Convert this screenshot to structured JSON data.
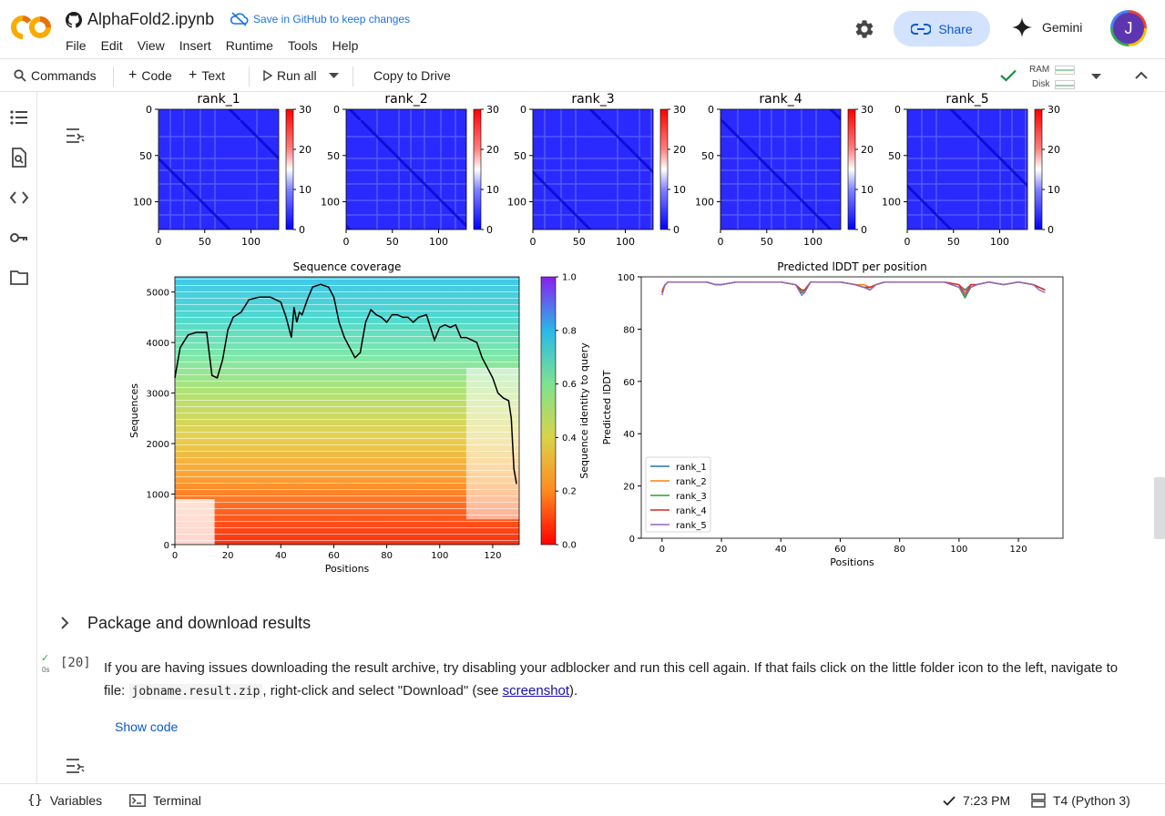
{
  "app": {
    "notebook_title": "AlphaFold2.ipynb",
    "save_notice": "Save in GitHub to keep changes",
    "share_label": "Share",
    "gemini_label": "Gemini",
    "avatar_letter": "J"
  },
  "menu": [
    "File",
    "Edit",
    "View",
    "Insert",
    "Runtime",
    "Tools",
    "Help"
  ],
  "toolbar": {
    "commands": "Commands",
    "code": "Code",
    "text": "Text",
    "run_all": "Run all",
    "copy_to_drive": "Copy to Drive",
    "ram": "RAM",
    "disk": "Disk"
  },
  "pae_plots": {
    "titles": [
      "rank_1",
      "rank_2",
      "rank_3",
      "rank_4",
      "rank_5"
    ],
    "y_ticks": [
      "0",
      "50",
      "100"
    ],
    "x_ticks": [
      "0",
      "50",
      "100"
    ],
    "colorbar_ticks": [
      "30",
      "20",
      "10",
      "0"
    ]
  },
  "coverage_plot": {
    "title": "Sequence coverage",
    "xlabel": "Positions",
    "ylabel": "Sequences",
    "colorbar_label": "Sequence identity to query",
    "x_ticks": [
      "0",
      "20",
      "40",
      "60",
      "80",
      "100",
      "120"
    ],
    "y_ticks": [
      "0",
      "1000",
      "2000",
      "3000",
      "4000",
      "5000"
    ],
    "cbar_ticks": [
      "0.0",
      "0.2",
      "0.4",
      "0.6",
      "0.8",
      "1.0"
    ]
  },
  "chart_data": [
    {
      "type": "area",
      "title": "Sequence coverage",
      "xlabel": "Positions",
      "ylabel": "Sequences",
      "xlim": [
        0,
        130
      ],
      "ylim": [
        0,
        5300
      ],
      "x": [
        0,
        2,
        5,
        8,
        12,
        14,
        16,
        18,
        20,
        22,
        25,
        28,
        32,
        36,
        40,
        42,
        44,
        45,
        46,
        47,
        48,
        50,
        52,
        55,
        58,
        60,
        62,
        64,
        66,
        68,
        70,
        72,
        74,
        76,
        78,
        80,
        82,
        84,
        86,
        88,
        90,
        92,
        95,
        98,
        100,
        102,
        104,
        106,
        108,
        110,
        112,
        114,
        116,
        118,
        120,
        122,
        124,
        126,
        127,
        128,
        129
      ],
      "coverage_line": [
        3300,
        3900,
        4150,
        4200,
        4200,
        3350,
        3300,
        3650,
        4250,
        4500,
        4600,
        4850,
        4900,
        4900,
        4800,
        4500,
        4100,
        4700,
        4400,
        4600,
        4550,
        4850,
        5100,
        5150,
        5100,
        4900,
        4400,
        4100,
        3900,
        3700,
        3800,
        4400,
        4650,
        4550,
        4500,
        4400,
        4550,
        4550,
        4500,
        4500,
        4400,
        4500,
        4550,
        4050,
        4300,
        4350,
        4300,
        4350,
        4100,
        4100,
        4050,
        4000,
        3700,
        3500,
        3300,
        3000,
        2900,
        2850,
        2500,
        1500,
        1200
      ],
      "colorbar": {
        "label": "Sequence identity to query",
        "range": [
          0.0,
          1.0
        ]
      }
    },
    {
      "type": "line",
      "title": "Predicted lDDT per position",
      "xlabel": "Positions",
      "ylabel": "Predicted lDDT",
      "xlim": [
        -7,
        135
      ],
      "ylim": [
        0,
        100
      ],
      "x_ticks": [
        "0",
        "20",
        "40",
        "60",
        "80",
        "100",
        "120"
      ],
      "y_ticks": [
        "0",
        "20",
        "40",
        "60",
        "80",
        "100"
      ],
      "legend_position": "lower-left",
      "series": [
        {
          "name": "rank_1",
          "color": "#1f77b4",
          "x": [
            0,
            1,
            2,
            5,
            10,
            15,
            18,
            20,
            25,
            30,
            40,
            45,
            47,
            48,
            50,
            55,
            60,
            65,
            68,
            70,
            72,
            75,
            80,
            85,
            90,
            95,
            100,
            102,
            104,
            106,
            110,
            115,
            120,
            125,
            127,
            129
          ],
          "values": [
            94,
            97,
            98,
            98,
            98,
            98,
            97,
            97,
            98,
            98,
            98,
            97,
            94,
            95,
            98,
            98,
            98,
            97,
            96,
            96,
            97,
            98,
            98,
            98,
            98,
            98,
            97,
            95,
            97,
            97,
            98,
            97,
            98,
            97,
            96,
            95
          ]
        },
        {
          "name": "rank_2",
          "color": "#ff7f0e",
          "x": [
            0,
            1,
            2,
            5,
            10,
            15,
            18,
            20,
            25,
            30,
            40,
            45,
            47,
            48,
            50,
            55,
            60,
            65,
            68,
            70,
            72,
            75,
            80,
            85,
            90,
            95,
            100,
            102,
            104,
            106,
            110,
            115,
            120,
            125,
            127,
            129
          ],
          "values": [
            95,
            97,
            98,
            98,
            98,
            98,
            97,
            97,
            98,
            98,
            98,
            97,
            95,
            95,
            98,
            98,
            98,
            97,
            97,
            96,
            97,
            98,
            98,
            98,
            98,
            98,
            97,
            94,
            97,
            97,
            98,
            97,
            98,
            97,
            96,
            95
          ]
        },
        {
          "name": "rank_3",
          "color": "#2ca02c",
          "x": [
            0,
            1,
            2,
            5,
            10,
            15,
            18,
            20,
            25,
            30,
            40,
            45,
            47,
            48,
            50,
            55,
            60,
            65,
            68,
            70,
            72,
            75,
            80,
            85,
            90,
            95,
            100,
            102,
            104,
            106,
            110,
            115,
            120,
            125,
            127,
            129
          ],
          "values": [
            94,
            97,
            98,
            98,
            98,
            98,
            97,
            97,
            98,
            98,
            98,
            97,
            94,
            94,
            98,
            98,
            98,
            97,
            96,
            95,
            97,
            98,
            98,
            98,
            98,
            98,
            96,
            92,
            96,
            97,
            98,
            97,
            98,
            97,
            96,
            95
          ]
        },
        {
          "name": "rank_4",
          "color": "#d62728",
          "x": [
            0,
            1,
            2,
            5,
            10,
            15,
            18,
            20,
            25,
            30,
            40,
            45,
            47,
            48,
            50,
            55,
            60,
            65,
            68,
            70,
            72,
            75,
            80,
            85,
            90,
            95,
            100,
            102,
            104,
            106,
            110,
            115,
            120,
            125,
            127,
            129
          ],
          "values": [
            94,
            97,
            98,
            98,
            98,
            98,
            97,
            97,
            98,
            98,
            98,
            97,
            95,
            95,
            98,
            98,
            98,
            97,
            96,
            96,
            97,
            98,
            98,
            98,
            98,
            98,
            97,
            93,
            97,
            97,
            98,
            97,
            98,
            97,
            96,
            95
          ]
        },
        {
          "name": "rank_5",
          "color": "#9467bd",
          "x": [
            0,
            1,
            2,
            5,
            10,
            15,
            18,
            20,
            25,
            30,
            40,
            45,
            47,
            48,
            50,
            55,
            60,
            65,
            68,
            70,
            72,
            75,
            80,
            85,
            90,
            95,
            100,
            102,
            104,
            106,
            110,
            115,
            120,
            125,
            127,
            129
          ],
          "values": [
            93,
            97,
            98,
            98,
            98,
            98,
            97,
            97,
            98,
            98,
            98,
            97,
            93,
            94,
            98,
            98,
            98,
            97,
            96,
            95,
            97,
            98,
            98,
            98,
            98,
            98,
            96,
            93,
            96,
            97,
            98,
            97,
            98,
            97,
            95,
            94
          ]
        }
      ]
    }
  ],
  "section": {
    "title": "Package and download results"
  },
  "cell20": {
    "exec_count": "[20]",
    "exec_time": "0s",
    "text_before": "If you are having issues downloading the result archive, try disabling your adblocker and run this cell again. If that fails click on the little folder icon to the left, navigate to file: ",
    "code": "jobname.result.zip",
    "text_mid": ", right-click and select \"Download\" (see ",
    "link": "screenshot",
    "text_after": ").",
    "show_code": "Show code"
  },
  "statusbar": {
    "variables": "Variables",
    "terminal": "Terminal",
    "time": "7:23 PM",
    "runtime": "T4 (Python 3)"
  },
  "colors": {
    "accent": "#0b57d0",
    "share_bg": "#d3e3fd",
    "check_green": "#1e8e3e"
  }
}
